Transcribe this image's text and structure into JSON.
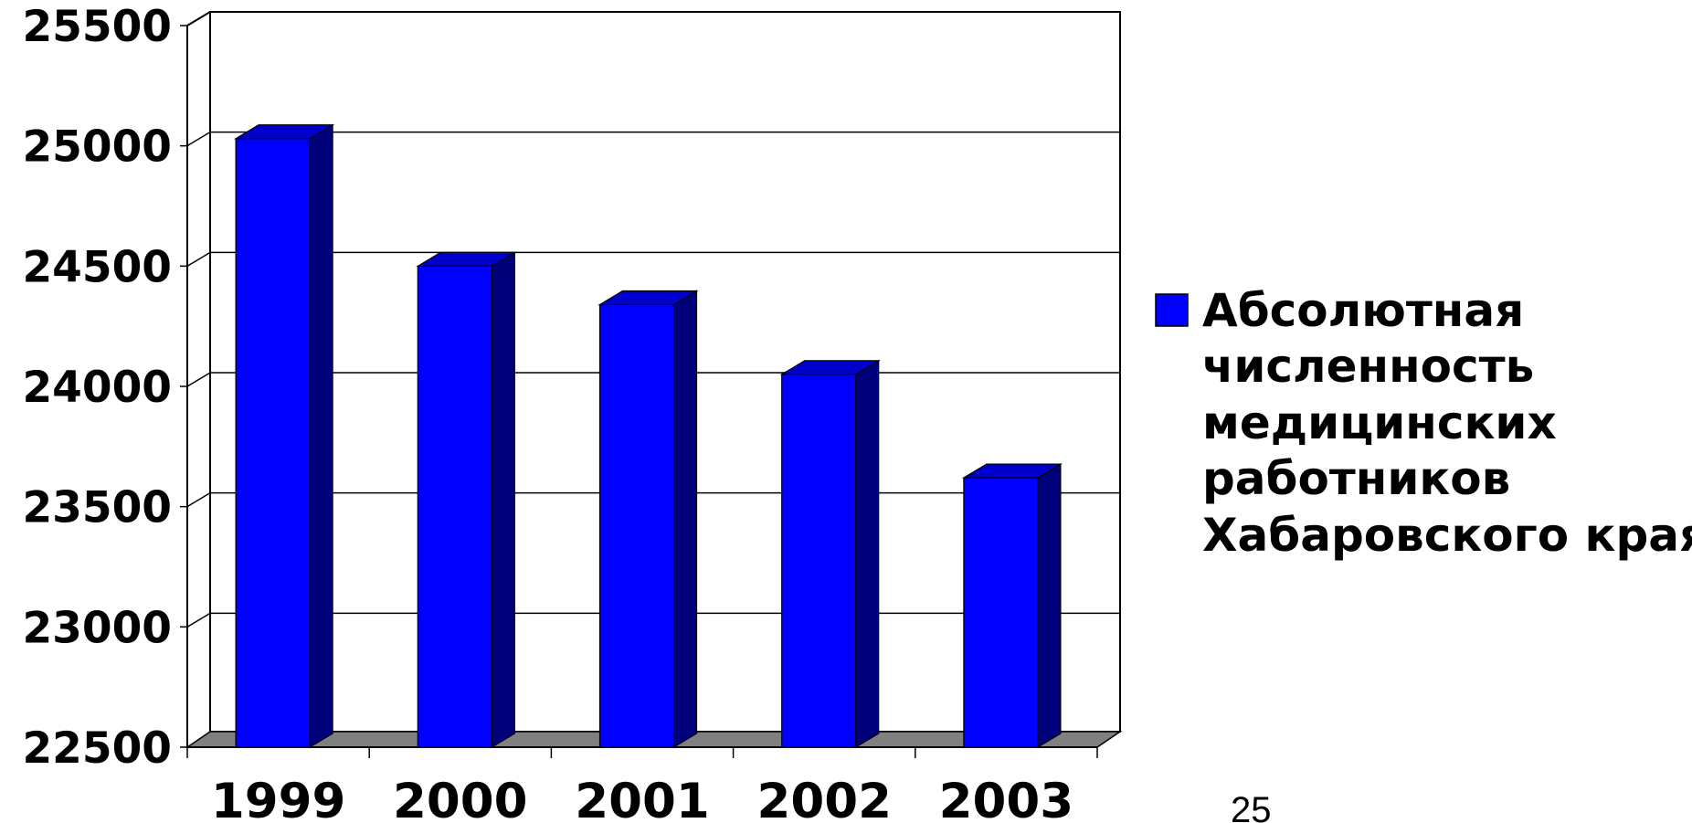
{
  "chart_data": {
    "type": "bar",
    "categories": [
      "1999",
      "2000",
      "2001",
      "2002",
      "2003"
    ],
    "series": [
      {
        "name": "Абсолютная численность медицинских работников Хабаровского края",
        "values": [
          25030,
          24500,
          24340,
          24050,
          23620
        ]
      }
    ],
    "ylim": [
      22500,
      25500
    ],
    "yticks": [
      "22500",
      "23000",
      "23500",
      "24000",
      "24500",
      "25000",
      "25500"
    ],
    "grid": true,
    "legend_position": "right",
    "style": "3d-column"
  },
  "legend": {
    "lines": [
      "Абсолютная",
      "численность",
      "медицинских",
      "работников",
      "Хабаровского края"
    ]
  },
  "colors": {
    "bar_front": "#0000ff",
    "bar_side": "#00007a",
    "bar_top": "#0000cc",
    "floor": "#808080"
  },
  "page_number": "25"
}
